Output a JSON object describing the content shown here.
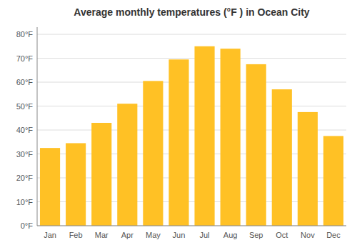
{
  "chart_data": {
    "type": "bar",
    "title": "Average monthly temperatures (°F ) in Ocean City",
    "categories": [
      "Jan",
      "Feb",
      "Mar",
      "Apr",
      "May",
      "Jun",
      "Jul",
      "Aug",
      "Sep",
      "Oct",
      "Nov",
      "Dec"
    ],
    "values": [
      32.5,
      34.5,
      43,
      51,
      60.5,
      69.5,
      75,
      74,
      67.5,
      57,
      47.5,
      37.5
    ],
    "color": "#FFC125",
    "ylim": [
      0,
      83
    ],
    "yticks": [
      {
        "value": 0,
        "label": "0°F"
      },
      {
        "value": 10,
        "label": "10°F"
      },
      {
        "value": 20,
        "label": "20°F"
      },
      {
        "value": 30,
        "label": "30°F"
      },
      {
        "value": 40,
        "label": "40°F"
      },
      {
        "value": 50,
        "label": "50°F"
      },
      {
        "value": 60,
        "label": "60°F"
      },
      {
        "value": 70,
        "label": "70°F"
      },
      {
        "value": 80,
        "label": "80°F"
      }
    ],
    "grid": true
  }
}
